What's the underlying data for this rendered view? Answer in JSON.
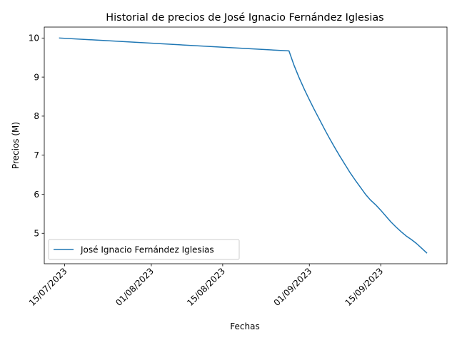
{
  "chart_data": {
    "type": "line",
    "title": "Historial de precios de José Ignacio Fernández Iglesias",
    "xlabel": "Fechas",
    "ylabel": "Precios (M)",
    "x_axis_type": "date",
    "xlim": [
      "2023-07-11",
      "2023-09-28"
    ],
    "ylim": [
      4.22,
      10.28
    ],
    "x_ticks": [
      {
        "date": "2023-07-15",
        "label": "15/07/2023"
      },
      {
        "date": "2023-08-01",
        "label": "01/08/2023"
      },
      {
        "date": "2023-08-15",
        "label": "15/08/2023"
      },
      {
        "date": "2023-09-01",
        "label": "01/09/2023"
      },
      {
        "date": "2023-09-15",
        "label": "15/09/2023"
      }
    ],
    "y_ticks": [
      5,
      6,
      7,
      8,
      9,
      10
    ],
    "grid": false,
    "legend_position": "lower-left",
    "series": [
      {
        "name": "José Ignacio Fernández Iglesias",
        "color": "#1f77b4",
        "points": [
          {
            "x": "2023-07-14",
            "y": 10.0
          },
          {
            "x": "2023-08-28",
            "y": 9.67
          },
          {
            "x": "2023-08-29",
            "y": 9.3
          },
          {
            "x": "2023-08-30",
            "y": 8.98
          },
          {
            "x": "2023-08-31",
            "y": 8.69
          },
          {
            "x": "2023-09-01",
            "y": 8.42
          },
          {
            "x": "2023-09-02",
            "y": 8.16
          },
          {
            "x": "2023-09-03",
            "y": 7.91
          },
          {
            "x": "2023-09-04",
            "y": 7.66
          },
          {
            "x": "2023-09-05",
            "y": 7.42
          },
          {
            "x": "2023-09-06",
            "y": 7.19
          },
          {
            "x": "2023-09-07",
            "y": 6.97
          },
          {
            "x": "2023-09-08",
            "y": 6.76
          },
          {
            "x": "2023-09-09",
            "y": 6.55
          },
          {
            "x": "2023-09-10",
            "y": 6.36
          },
          {
            "x": "2023-09-11",
            "y": 6.18
          },
          {
            "x": "2023-09-12",
            "y": 6.0
          },
          {
            "x": "2023-09-13",
            "y": 5.85
          },
          {
            "x": "2023-09-14",
            "y": 5.73
          },
          {
            "x": "2023-09-15",
            "y": 5.59
          },
          {
            "x": "2023-09-16",
            "y": 5.44
          },
          {
            "x": "2023-09-17",
            "y": 5.29
          },
          {
            "x": "2023-09-18",
            "y": 5.16
          },
          {
            "x": "2023-09-19",
            "y": 5.04
          },
          {
            "x": "2023-09-20",
            "y": 4.93
          },
          {
            "x": "2023-09-21",
            "y": 4.84
          },
          {
            "x": "2023-09-22",
            "y": 4.74
          },
          {
            "x": "2023-09-23",
            "y": 4.62
          },
          {
            "x": "2023-09-24",
            "y": 4.5
          }
        ]
      }
    ]
  }
}
